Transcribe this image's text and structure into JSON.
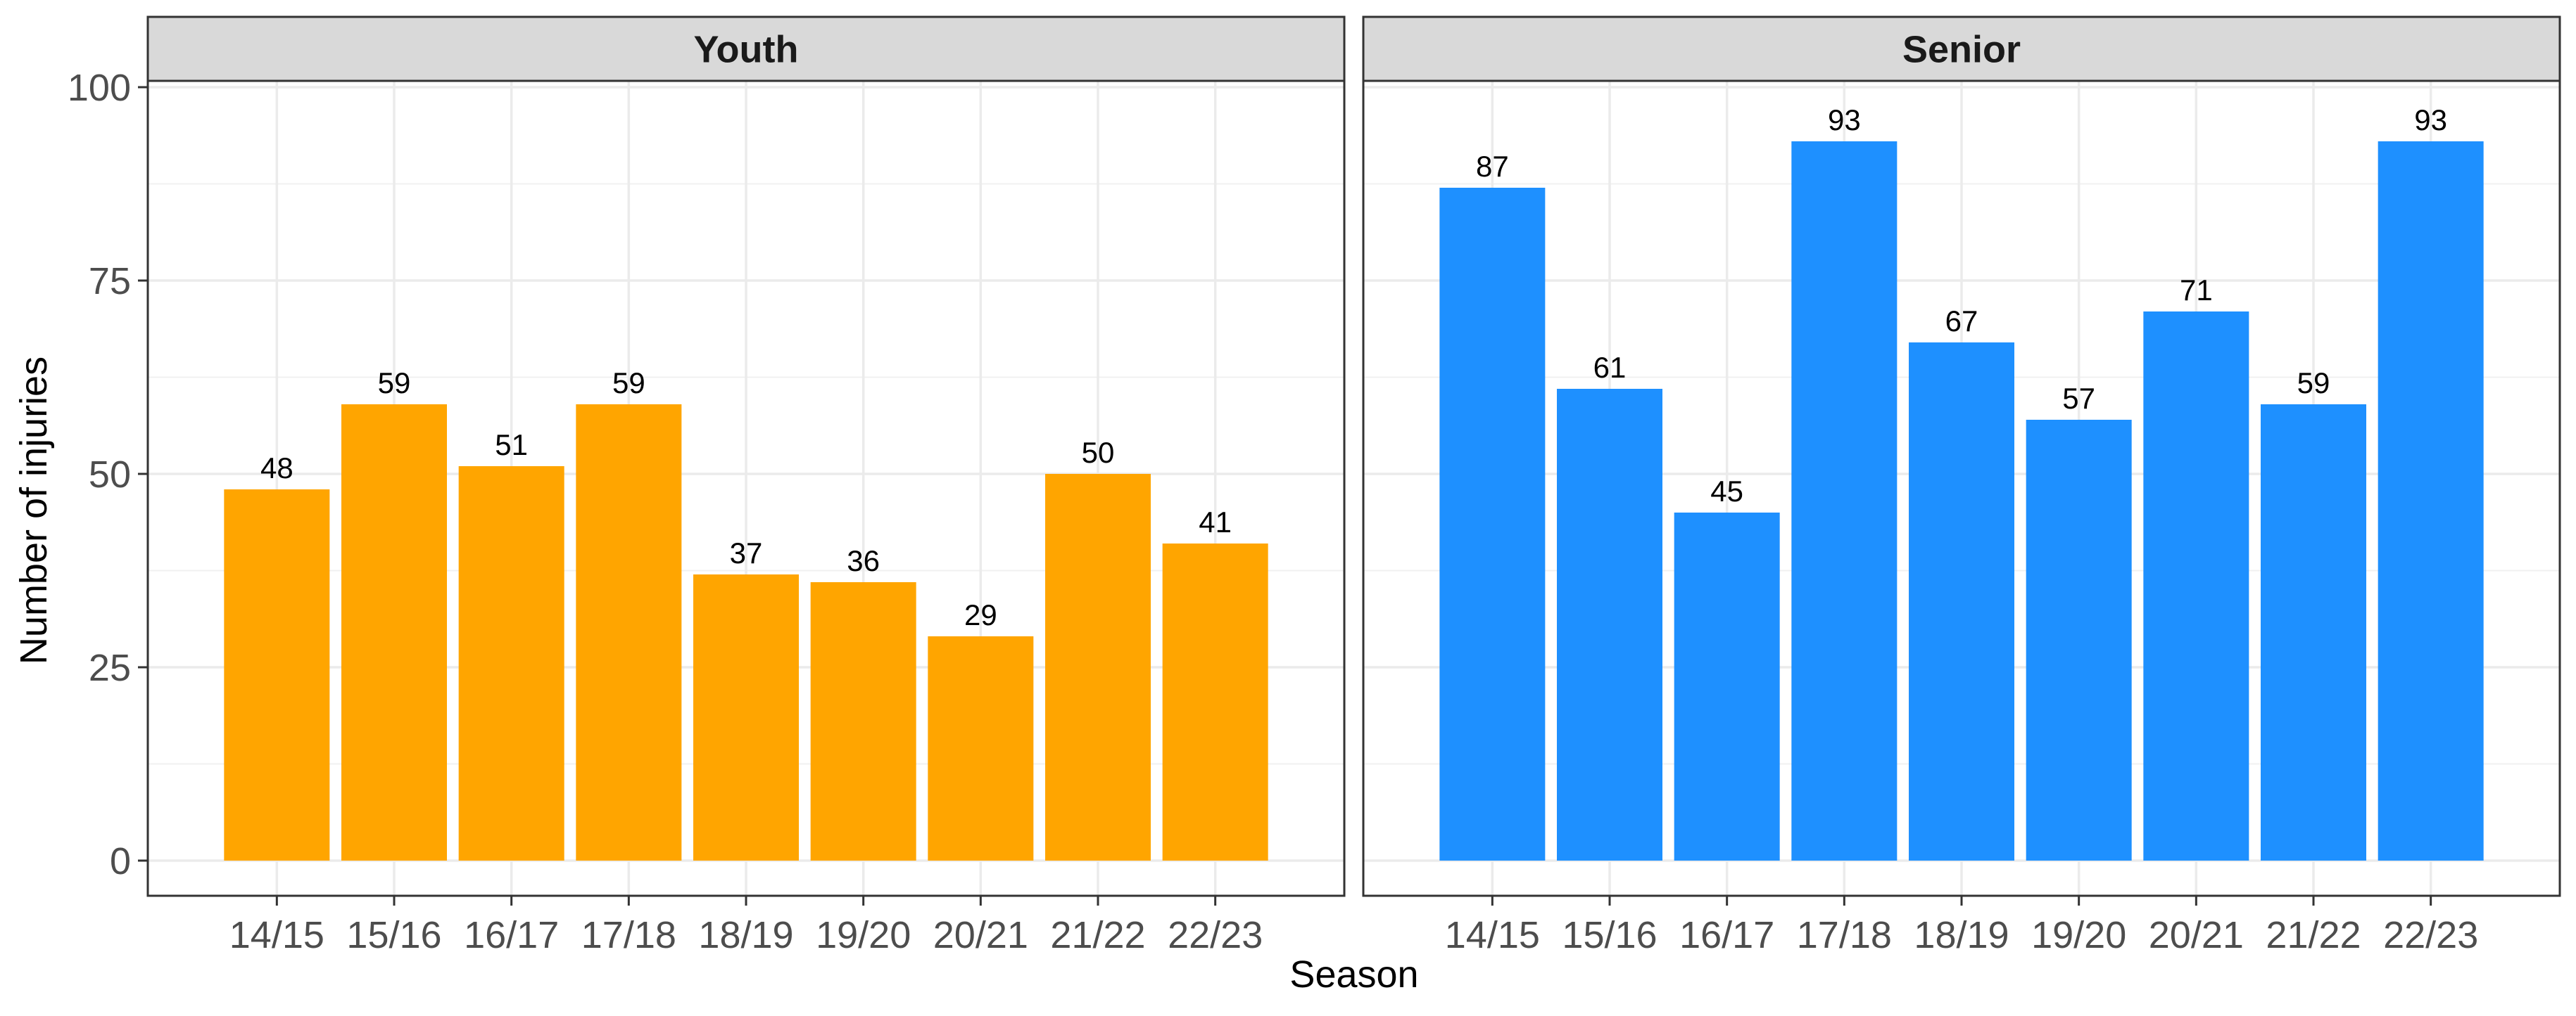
{
  "chart_data": {
    "type": "bar",
    "xlabel": "Season",
    "ylabel": "Number of injuries",
    "ylim": [
      0,
      100
    ],
    "yticks": [
      0,
      25,
      50,
      75,
      100
    ],
    "grid": true,
    "legend": "none",
    "categories": [
      "14/15",
      "15/16",
      "16/17",
      "17/18",
      "18/19",
      "19/20",
      "20/21",
      "21/22",
      "22/23"
    ],
    "panels": [
      {
        "name": "Youth",
        "color": "#FFA500",
        "values": [
          48,
          59,
          51,
          59,
          37,
          36,
          29,
          50,
          41
        ]
      },
      {
        "name": "Senior",
        "color": "#1E90FF",
        "values": [
          87,
          61,
          45,
          93,
          67,
          57,
          71,
          59,
          93
        ]
      }
    ]
  }
}
